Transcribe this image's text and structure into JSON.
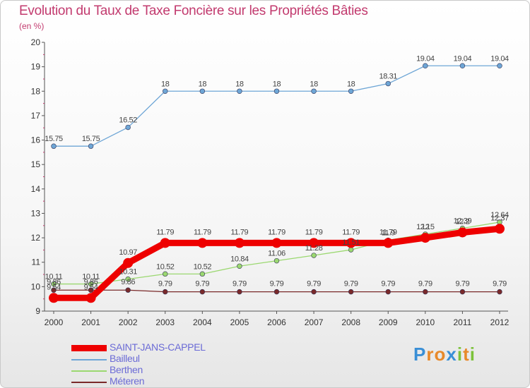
{
  "header": {
    "title": "Evolution du Taux de Taxe Foncière sur les Propriétés Bâties",
    "subtitle": "(en %)"
  },
  "logo": {
    "letters": [
      "P",
      "r",
      "o",
      "x",
      "i",
      "t",
      "i"
    ],
    "colors": [
      "#3a8fd6",
      "#e8892a",
      "#e8892a",
      "#3a8fd6",
      "#7cc23a",
      "#e8892a",
      "#7cc23a"
    ]
  },
  "chart_data": {
    "type": "line",
    "title": "Evolution du Taux de Taxe Foncière sur les Propriétés Bâties",
    "ylabel": "(en %)",
    "xlabel": "",
    "ylim": [
      9,
      20
    ],
    "yticks": [
      "9",
      "10",
      "11",
      "12",
      "13",
      "14",
      "15",
      "16",
      "17",
      "18",
      "19",
      "20"
    ],
    "categories": [
      "2000",
      "2001",
      "2002",
      "2003",
      "2004",
      "2005",
      "2006",
      "2007",
      "2008",
      "2009",
      "2010",
      "2011",
      "2012"
    ],
    "series": [
      {
        "name": "SAINT-JANS-CAPPEL",
        "color": "#ee0000",
        "values": [
          9.54,
          9.54,
          10.97,
          11.79,
          11.79,
          11.79,
          11.79,
          11.79,
          11.79,
          11.79,
          12.0,
          12.22,
          12.37
        ],
        "labels": [
          "9.54",
          "9.54",
          "10.97",
          "11.79",
          "11.79",
          "11.79",
          "11.79",
          "11.79",
          "11.79",
          "11.79",
          "12",
          "12.2",
          "12.37"
        ]
      },
      {
        "name": "Bailleul",
        "color": "#6ea6d6",
        "values": [
          15.75,
          15.75,
          16.52,
          18,
          18,
          18,
          18,
          18,
          18,
          18.31,
          19.04,
          19.04,
          19.04
        ],
        "labels": [
          "15.75",
          "15.75",
          "16.52",
          "18",
          "18",
          "18",
          "18",
          "18",
          "18",
          "18.31",
          "19.04",
          "19.04",
          "19.04"
        ]
      },
      {
        "name": "Berthen",
        "color": "#9bd870",
        "values": [
          10.11,
          10.11,
          10.31,
          10.52,
          10.52,
          10.84,
          11.06,
          11.28,
          11.51,
          11.9,
          12.15,
          12.39,
          12.64
        ],
        "labels": [
          "10.11",
          "10.11",
          "10.31",
          "10.52",
          "10.52",
          "10.84",
          "11.06",
          "11.28",
          "11.51",
          "11.9",
          "12.15",
          "12.39",
          "12.64"
        ]
      },
      {
        "name": "Méteren",
        "color": "#7a2a2a",
        "values": [
          9.86,
          9.86,
          9.86,
          9.79,
          9.79,
          9.79,
          9.79,
          9.79,
          9.79,
          9.79,
          9.79,
          9.79,
          9.79
        ],
        "labels": [
          "9.86",
          "9.86",
          "9.86",
          "9.79",
          "9.79",
          "9.79",
          "9.79",
          "9.79",
          "9.79",
          "9.79",
          "9.79",
          "9.79",
          "9.79"
        ]
      }
    ]
  }
}
